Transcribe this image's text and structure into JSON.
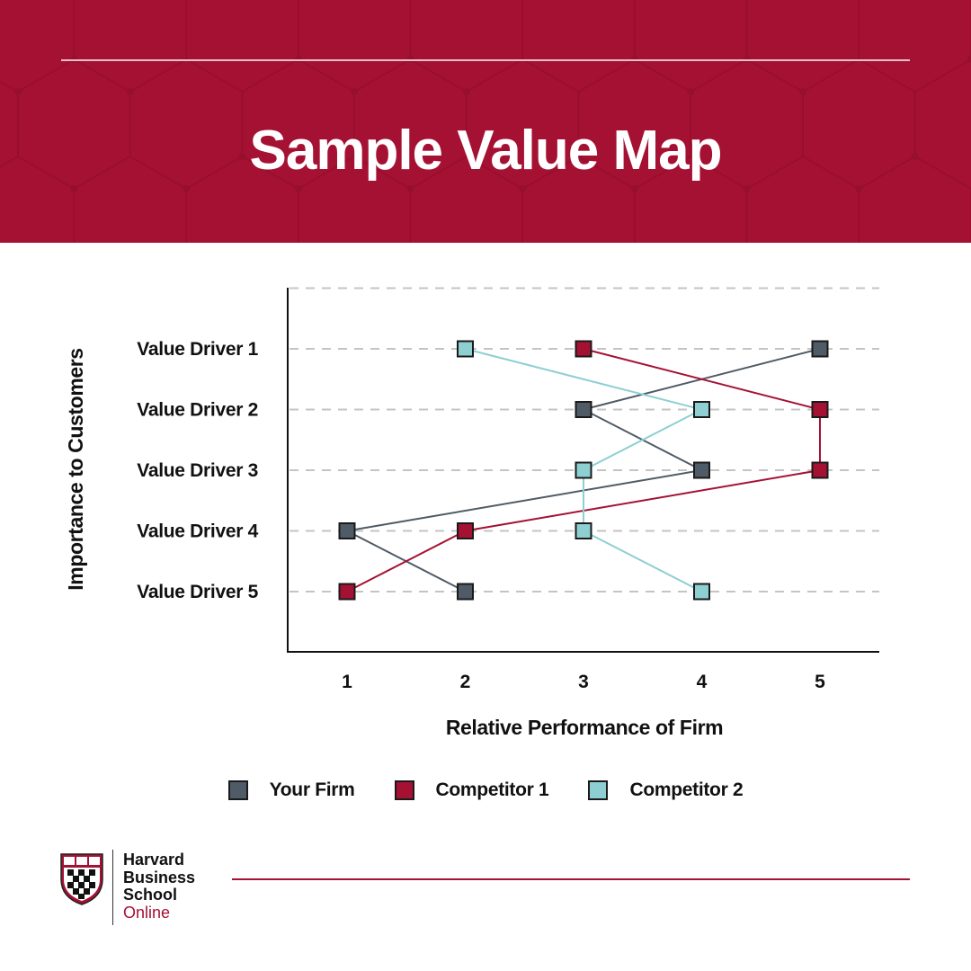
{
  "header": {
    "title": "Sample Value Map",
    "background": "#a51133"
  },
  "chart_data": {
    "type": "line",
    "title": "Sample Value Map",
    "xlabel": "Relative Performance of Firm",
    "ylabel": "Importance to Customers",
    "categories": [
      "Value Driver 1",
      "Value Driver 2",
      "Value Driver 3",
      "Value Driver 4",
      "Value Driver 5"
    ],
    "x_ticks": [
      "1",
      "2",
      "3",
      "4",
      "5"
    ],
    "xlim": [
      1,
      5
    ],
    "grid": "horizontal-dashed",
    "legend_position": "bottom",
    "series": [
      {
        "name": "Your Firm",
        "color": "#4f5b66",
        "values": [
          5,
          3,
          4,
          1,
          2
        ]
      },
      {
        "name": "Competitor 1",
        "color": "#a51133",
        "values": [
          3,
          5,
          5,
          2,
          1
        ]
      },
      {
        "name": "Competitor 2",
        "color": "#8ecfd2",
        "values": [
          2,
          4,
          3,
          3,
          4
        ]
      }
    ]
  },
  "footer": {
    "brand_line1": "Harvard",
    "brand_line2": "Business",
    "brand_line3": "School",
    "brand_line4": "Online",
    "logo_icon": "hbs-shield-icon",
    "accent": "#a51133"
  }
}
